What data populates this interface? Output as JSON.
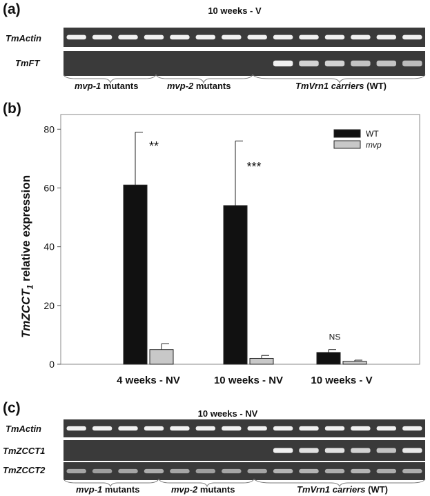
{
  "panel_a": {
    "letter": "(a)",
    "title": "10 weeks - V",
    "rows": [
      {
        "label": "TmActin",
        "bands": [
          1,
          1,
          1,
          1,
          1,
          1,
          1,
          1,
          1,
          1,
          1,
          1,
          1,
          1
        ]
      },
      {
        "label": "TmFT",
        "bands": [
          0,
          0,
          0,
          0,
          0,
          0,
          0,
          0,
          1,
          0.8,
          0.8,
          0.7,
          0.7,
          0.65
        ]
      }
    ],
    "groups": [
      {
        "italic": "mvp-1",
        "text": " mutants"
      },
      {
        "italic": "mvp-2",
        "text": " mutants"
      },
      {
        "italic": "TmVrn1 carriers",
        "text": " (WT)"
      }
    ]
  },
  "panel_b": {
    "letter": "(b)",
    "ylabel_main": "TmZCCT",
    "ylabel_sub": "1",
    "ylabel_rest": " relative expression"
  },
  "chart_data": {
    "type": "bar",
    "categories": [
      "4 weeks - NV",
      "10 weeks - NV",
      "10 weeks - V"
    ],
    "series": [
      {
        "name": "WT",
        "values": [
          61,
          54,
          4
        ],
        "errors": [
          18,
          22,
          1
        ],
        "color": "#111111"
      },
      {
        "name": "mvp",
        "values": [
          5,
          2,
          1
        ],
        "errors": [
          2,
          1,
          0.4
        ],
        "color": "#c8c8c8"
      }
    ],
    "significance": [
      "**",
      "***",
      "NS"
    ],
    "ylim": [
      0,
      85
    ],
    "yticks": [
      0,
      20,
      40,
      60,
      80
    ],
    "legend": "top-right"
  },
  "panel_c": {
    "letter": "(c)",
    "title": "10 weeks - NV",
    "rows": [
      {
        "label": "TmActin",
        "bands": [
          1,
          1,
          1,
          1,
          1,
          1,
          1,
          1,
          1,
          1,
          1,
          1,
          1,
          1
        ]
      },
      {
        "label": "TmZCCT1",
        "bands": [
          0,
          0,
          0,
          0,
          0,
          0,
          0,
          0,
          1,
          0.9,
          0.9,
          0.8,
          0.7,
          0.95
        ]
      },
      {
        "label": "TmZCCT2",
        "bands": [
          0.5,
          0.45,
          0.5,
          0.55,
          0.5,
          0.45,
          0.5,
          0.5,
          0.6,
          0.6,
          0.55,
          0.6,
          0.55,
          0.55
        ]
      }
    ],
    "groups": [
      {
        "italic": "mvp-1",
        "text": " mutants"
      },
      {
        "italic": "mvp-2",
        "text": " mutants"
      },
      {
        "italic": "TmVrn1 carriers",
        "text": " (WT)"
      }
    ]
  }
}
